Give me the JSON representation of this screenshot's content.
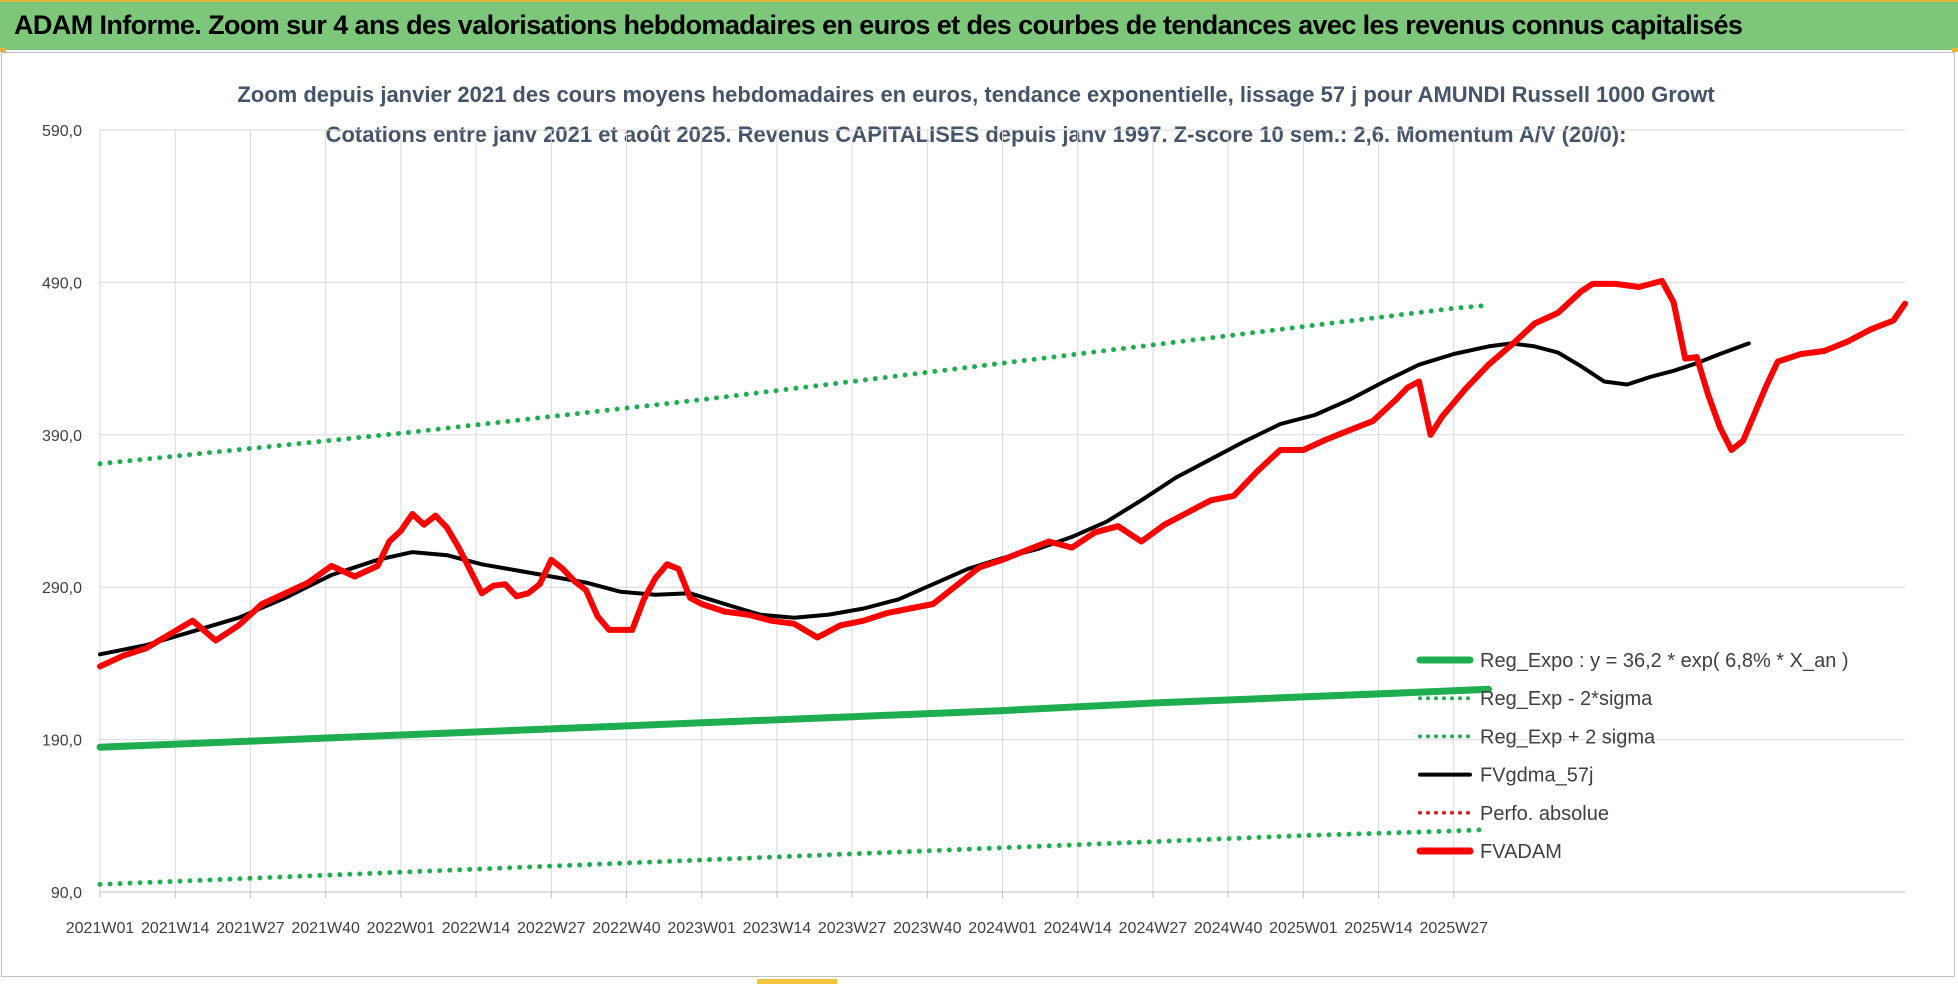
{
  "banner": {
    "title": "ADAM Informe. Zoom sur 4 ans des valorisations hebdomadaires en euros et des courbes de tendances avec les revenus connus capitalisés"
  },
  "chart_data": {
    "type": "line",
    "title": "Zoom depuis janvier 2021 des cours moyens hebdomadaires en euros, tendance exponentielle, lissage 57 j pour AMUNDI Russell 1000 Growt",
    "subtitle": "Cotations entre janv 2021 et août 2025. Revenus CAPITALISES depuis janv 1997. Z-score 10 sem.: 2,6. Momentum A/V (20/0):",
    "y_ticks": [
      "590,0",
      "490,0",
      "390,0",
      "290,0",
      "190,0",
      "90,0"
    ],
    "ylim": [
      90,
      590
    ],
    "grid": true,
    "x_ticks": [
      "2021W01",
      "2021W14",
      "2021W27",
      "2021W40",
      "2022W01",
      "2022W14",
      "2022W27",
      "2022W40",
      "2023W01",
      "2023W14",
      "2023W27",
      "2023W40",
      "2024W01",
      "2024W14",
      "2024W27",
      "2024W40",
      "2025W01",
      "2025W14",
      "2025W27"
    ],
    "x_start": "2021W01",
    "legend_position": "bottom-right",
    "legend": [
      {
        "label": "Reg_Expo : y = 36,2 * exp( 6,8% * X_an )",
        "color": "#1fae4f",
        "style": "solid-thick"
      },
      {
        "label": "Reg_Exp - 2*sigma",
        "color": "#1fae4f",
        "style": "dotted"
      },
      {
        "label": "Reg_Exp + 2 sigma",
        "color": "#1fae4f",
        "style": "dotted"
      },
      {
        "label": "FVgdma_57j",
        "color": "#000000",
        "style": "solid"
      },
      {
        "label": "Perfo. absolue",
        "color": "#e02020",
        "style": "dotted"
      },
      {
        "label": "FVADAM",
        "color": "#ff0000",
        "style": "solid-thick"
      }
    ],
    "series": [
      {
        "name": "Reg_Expo : y = 36,2 * exp( 6,8% * X_an )",
        "color": "#1fae4f",
        "points": [
          [
            0,
            185
          ],
          [
            26,
            189
          ],
          [
            52,
            193
          ],
          [
            78,
            197
          ],
          [
            104,
            201
          ],
          [
            130,
            205
          ],
          [
            156,
            209
          ],
          [
            182,
            214
          ],
          [
            208,
            218
          ],
          [
            234,
            222
          ],
          [
            240,
            223
          ]
        ]
      },
      {
        "name": "Reg_Exp - 2*sigma",
        "color": "#1fae4f",
        "points": [
          [
            0,
            95
          ],
          [
            26,
            99
          ],
          [
            52,
            103
          ],
          [
            78,
            107
          ],
          [
            104,
            111
          ],
          [
            130,
            115
          ],
          [
            156,
            119
          ],
          [
            182,
            123
          ],
          [
            208,
            127
          ],
          [
            234,
            130
          ],
          [
            240,
            131
          ]
        ]
      },
      {
        "name": "Reg_Exp + 2 sigma",
        "color": "#1fae4f",
        "points": [
          [
            0,
            371
          ],
          [
            26,
            381
          ],
          [
            52,
            391
          ],
          [
            78,
            402
          ],
          [
            104,
            413
          ],
          [
            130,
            425
          ],
          [
            156,
            437
          ],
          [
            182,
            449
          ],
          [
            208,
            461
          ],
          [
            234,
            473
          ],
          [
            240,
            475
          ]
        ]
      },
      {
        "name": "FVgdma_57j",
        "color": "#000000",
        "points": [
          [
            0,
            246
          ],
          [
            8,
            252
          ],
          [
            16,
            261
          ],
          [
            24,
            270
          ],
          [
            32,
            283
          ],
          [
            40,
            298
          ],
          [
            48,
            308
          ],
          [
            54,
            313
          ],
          [
            60,
            311
          ],
          [
            66,
            305
          ],
          [
            72,
            301
          ],
          [
            78,
            297
          ],
          [
            84,
            293
          ],
          [
            90,
            287
          ],
          [
            96,
            285
          ],
          [
            102,
            286
          ],
          [
            108,
            279
          ],
          [
            114,
            272
          ],
          [
            120,
            270
          ],
          [
            126,
            272
          ],
          [
            132,
            276
          ],
          [
            138,
            282
          ],
          [
            144,
            292
          ],
          [
            150,
            302
          ],
          [
            156,
            309
          ],
          [
            162,
            315
          ],
          [
            168,
            323
          ],
          [
            174,
            333
          ],
          [
            180,
            347
          ],
          [
            186,
            362
          ],
          [
            192,
            374
          ],
          [
            198,
            386
          ],
          [
            204,
            397
          ],
          [
            210,
            403
          ],
          [
            216,
            413
          ],
          [
            222,
            425
          ],
          [
            228,
            436
          ],
          [
            234,
            443
          ],
          [
            240,
            448
          ],
          [
            244,
            450
          ],
          [
            248,
            448
          ],
          [
            252,
            444
          ],
          [
            256,
            435
          ],
          [
            260,
            425
          ],
          [
            264,
            423
          ],
          [
            268,
            428
          ],
          [
            272,
            432
          ],
          [
            276,
            437
          ],
          [
            280,
            443
          ],
          [
            285,
            450
          ]
        ]
      },
      {
        "name": "FVADAM",
        "color": "#ff0000",
        "points": [
          [
            0,
            238
          ],
          [
            4,
            245
          ],
          [
            8,
            250
          ],
          [
            12,
            259
          ],
          [
            16,
            268
          ],
          [
            20,
            255
          ],
          [
            24,
            265
          ],
          [
            28,
            279
          ],
          [
            32,
            286
          ],
          [
            36,
            293
          ],
          [
            40,
            304
          ],
          [
            44,
            297
          ],
          [
            48,
            304
          ],
          [
            50,
            320
          ],
          [
            52,
            327
          ],
          [
            54,
            338
          ],
          [
            56,
            331
          ],
          [
            58,
            337
          ],
          [
            60,
            329
          ],
          [
            62,
            316
          ],
          [
            64,
            301
          ],
          [
            66,
            286
          ],
          [
            68,
            291
          ],
          [
            70,
            292
          ],
          [
            72,
            284
          ],
          [
            74,
            286
          ],
          [
            76,
            292
          ],
          [
            78,
            308
          ],
          [
            80,
            302
          ],
          [
            82,
            294
          ],
          [
            84,
            288
          ],
          [
            86,
            271
          ],
          [
            88,
            262
          ],
          [
            90,
            262
          ],
          [
            92,
            262
          ],
          [
            94,
            282
          ],
          [
            96,
            296
          ],
          [
            98,
            305
          ],
          [
            100,
            302
          ],
          [
            102,
            283
          ],
          [
            104,
            279
          ],
          [
            108,
            274
          ],
          [
            112,
            272
          ],
          [
            116,
            268
          ],
          [
            120,
            266
          ],
          [
            124,
            257
          ],
          [
            128,
            265
          ],
          [
            132,
            268
          ],
          [
            136,
            273
          ],
          [
            140,
            276
          ],
          [
            144,
            279
          ],
          [
            148,
            291
          ],
          [
            152,
            303
          ],
          [
            156,
            308
          ],
          [
            160,
            314
          ],
          [
            164,
            320
          ],
          [
            168,
            316
          ],
          [
            172,
            326
          ],
          [
            176,
            330
          ],
          [
            180,
            320
          ],
          [
            184,
            331
          ],
          [
            188,
            339
          ],
          [
            192,
            347
          ],
          [
            196,
            350
          ],
          [
            200,
            366
          ],
          [
            204,
            380
          ],
          [
            208,
            380
          ],
          [
            212,
            387
          ],
          [
            216,
            393
          ],
          [
            220,
            399
          ],
          [
            224,
            413
          ],
          [
            226,
            421
          ],
          [
            228,
            425
          ],
          [
            230,
            390
          ],
          [
            232,
            402
          ],
          [
            236,
            420
          ],
          [
            240,
            436
          ],
          [
            244,
            449
          ],
          [
            248,
            463
          ],
          [
            252,
            470
          ],
          [
            256,
            484
          ],
          [
            258,
            489
          ],
          [
            262,
            489
          ],
          [
            266,
            487
          ],
          [
            270,
            491
          ],
          [
            272,
            477
          ],
          [
            274,
            440
          ],
          [
            276,
            441
          ],
          [
            278,
            416
          ],
          [
            280,
            395
          ],
          [
            282,
            380
          ],
          [
            284,
            386
          ],
          [
            286,
            404
          ],
          [
            288,
            422
          ],
          [
            290,
            438
          ],
          [
            294,
            443
          ],
          [
            298,
            445
          ],
          [
            302,
            451
          ],
          [
            306,
            459
          ],
          [
            310,
            465
          ],
          [
            312,
            476
          ]
        ]
      }
    ]
  }
}
